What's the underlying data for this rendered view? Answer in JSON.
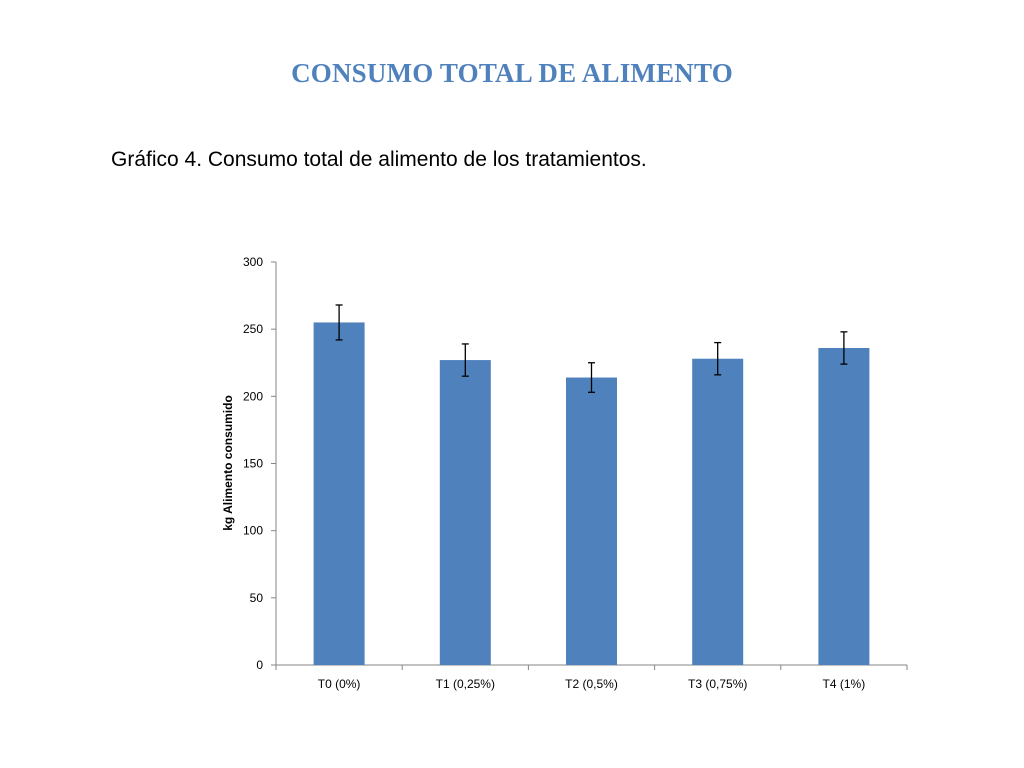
{
  "slide": {
    "title": "CONSUMO TOTAL DE ALIMENTO",
    "caption": "Gráfico 4. Consumo total de alimento de los tratamientos."
  },
  "colors": {
    "title": "#4f81bd",
    "bar": "#4f81bd",
    "axis": "#868686"
  },
  "chart_data": {
    "type": "bar",
    "title": "",
    "xlabel": "",
    "ylabel": "kg Alimento consumido",
    "ylim": [
      0,
      300
    ],
    "yticks": [
      0,
      50,
      100,
      150,
      200,
      250,
      300
    ],
    "grid": false,
    "legend": "none",
    "categories": [
      "T0 (0%)",
      "T1 (0,25%)",
      "T2 (0,5%)",
      "T3 (0,75%)",
      "T4 (1%)"
    ],
    "series": [
      {
        "values": [
          255,
          227,
          214,
          228,
          236
        ],
        "error": [
          13,
          12,
          11,
          12,
          12
        ]
      }
    ]
  }
}
